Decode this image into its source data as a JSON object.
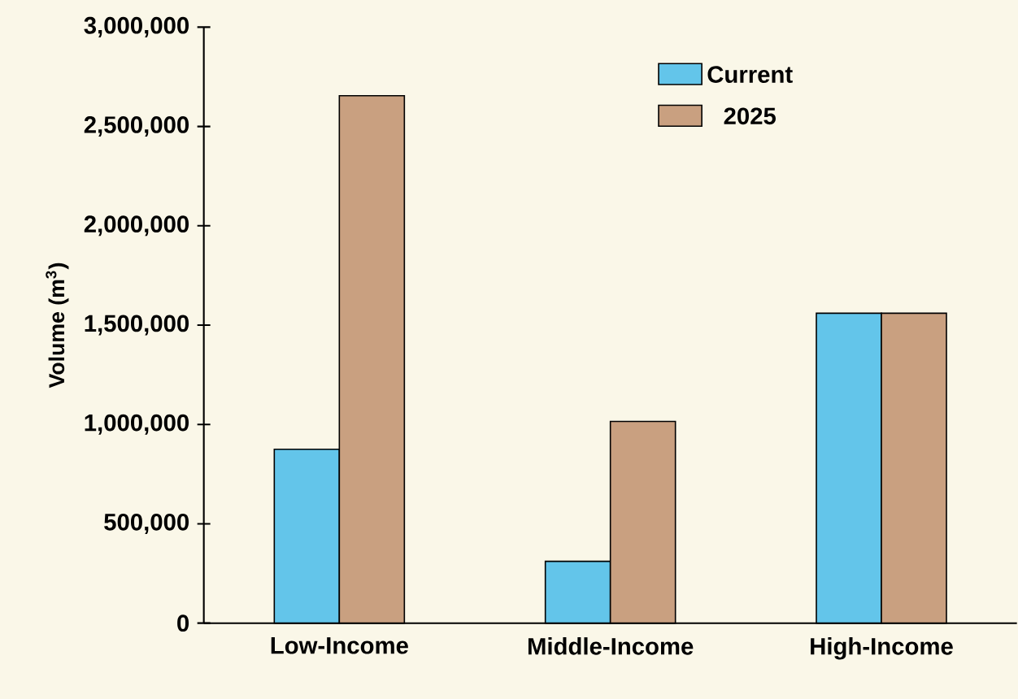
{
  "chart_data": {
    "type": "bar",
    "ylabel": "Volume (m$^{3}$)",
    "categories": [
      "Low-Income",
      "Middle-Income",
      "High-Income"
    ],
    "series": [
      {
        "name": "Current",
        "color": "#63c5ea",
        "values": [
          875000,
          311000,
          1560000
        ]
      },
      {
        "name": "2025",
        "color": "#c9a080",
        "values": [
          2655000,
          1015000,
          1560000
        ]
      }
    ],
    "ylim": [
      0,
      3000000
    ],
    "yticks": [
      {
        "value": 0,
        "label": "0"
      },
      {
        "value": 500000,
        "label": "500,000"
      },
      {
        "value": 1000000,
        "label": "1,000,000"
      },
      {
        "value": 1500000,
        "label": "1,500,000"
      },
      {
        "value": 2000000,
        "label": "2,000,000"
      },
      {
        "value": 2500000,
        "label": "2,500,000"
      },
      {
        "value": 3000000,
        "label": "3,000,000"
      }
    ],
    "grid": false,
    "legend": "top right"
  }
}
